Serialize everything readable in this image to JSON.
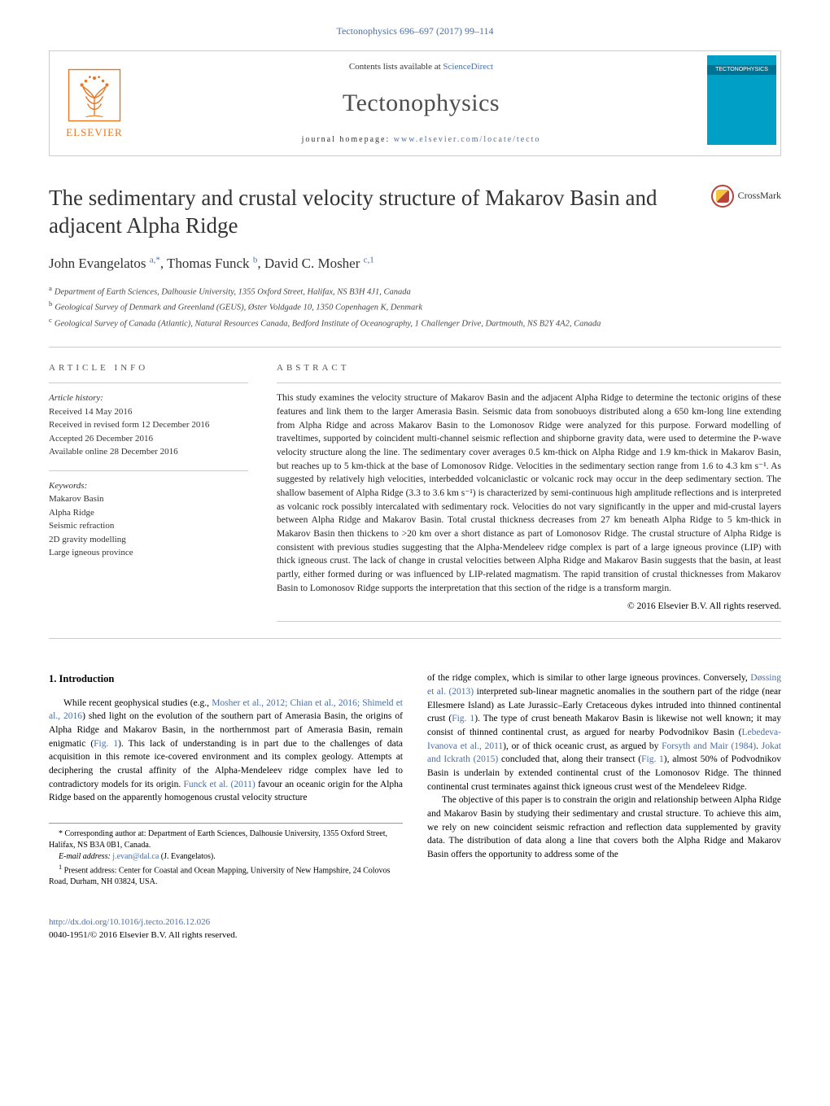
{
  "header": {
    "citation": "Tectonophysics 696–697 (2017) 99–114",
    "contents_prefix": "Contents lists available at ",
    "contents_link": "ScienceDirect",
    "journal_title": "Tectonophysics",
    "homepage_prefix": "journal homepage: ",
    "homepage_link": "www.elsevier.com/locate/tecto",
    "publisher_name": "ELSEVIER",
    "cover_title": "TECTONOPHYSICS"
  },
  "crossmark_label": "CrossMark",
  "article": {
    "title": "The sedimentary and crustal velocity structure of Makarov Basin and adjacent Alpha Ridge",
    "authors_html": "John Evangelatos <sup><a>a</a>,*</sup>, Thomas Funck <sup><a>b</a></sup>, David C. Mosher <sup><a>c</a>,<a>1</a></sup>",
    "affiliations": {
      "a": "Department of Earth Sciences, Dalhousie University, 1355 Oxford Street, Halifax, NS B3H 4J1, Canada",
      "b": "Geological Survey of Denmark and Greenland (GEUS), Øster Voldgade 10, 1350 Copenhagen K, Denmark",
      "c": "Geological Survey of Canada (Atlantic), Natural Resources Canada, Bedford Institute of Oceanography, 1 Challenger Drive, Dartmouth, NS B2Y 4A2, Canada"
    }
  },
  "info": {
    "heading": "ARTICLE INFO",
    "history_label": "Article history:",
    "history": [
      "Received 14 May 2016",
      "Received in revised form 12 December 2016",
      "Accepted 26 December 2016",
      "Available online 28 December 2016"
    ],
    "keywords_label": "Keywords:",
    "keywords": [
      "Makarov Basin",
      "Alpha Ridge",
      "Seismic refraction",
      "2D gravity modelling",
      "Large igneous province"
    ]
  },
  "abstract": {
    "heading": "ABSTRACT",
    "text": "This study examines the velocity structure of Makarov Basin and the adjacent Alpha Ridge to determine the tectonic origins of these features and link them to the larger Amerasia Basin. Seismic data from sonobuoys distributed along a 650 km-long line extending from Alpha Ridge and across Makarov Basin to the Lomonosov Ridge were analyzed for this purpose. Forward modelling of traveltimes, supported by coincident multi-channel seismic reflection and shipborne gravity data, were used to determine the P-wave velocity structure along the line. The sedimentary cover averages 0.5 km-thick on Alpha Ridge and 1.9 km-thick in Makarov Basin, but reaches up to 5 km-thick at the base of Lomonosov Ridge. Velocities in the sedimentary section range from 1.6 to 4.3 km s⁻¹. As suggested by relatively high velocities, interbedded volcaniclastic or volcanic rock may occur in the deep sedimentary section. The shallow basement of Alpha Ridge (3.3 to 3.6 km s⁻¹) is characterized by semi-continuous high amplitude reflections and is interpreted as volcanic rock possibly intercalated with sedimentary rock. Velocities do not vary significantly in the upper and mid-crustal layers between Alpha Ridge and Makarov Basin. Total crustal thickness decreases from 27 km beneath Alpha Ridge to 5 km-thick in Makarov Basin then thickens to >20 km over a short distance as part of Lomonosov Ridge. The crustal structure of Alpha Ridge is consistent with previous studies suggesting that the Alpha-Mendeleev ridge complex is part of a large igneous province (LIP) with thick igneous crust. The lack of change in crustal velocities between Alpha Ridge and Makarov Basin suggests that the basin, at least partly, either formed during or was influenced by LIP-related magmatism. The rapid transition of crustal thicknesses from Makarov Basin to Lomonosov Ridge supports the interpretation that this section of the ridge is a transform margin.",
    "copyright": "© 2016 Elsevier B.V. All rights reserved."
  },
  "body": {
    "section_heading": "1. Introduction",
    "col1_html": "While recent geophysical studies (e.g., <a>Mosher et al., 2012; Chian et al., 2016; Shimeld et al., 2016</a>) shed light on the evolution of the southern part of Amerasia Basin, the origins of Alpha Ridge and Makarov Basin, in the northernmost part of Amerasia Basin, remain enigmatic (<a>Fig. 1</a>). This lack of understanding is in part due to the challenges of data acquisition in this remote ice-covered environment and its complex geology. Attempts at deciphering the crustal affinity of the Alpha-Mendeleev ridge complex have led to contradictory models for its origin. <a>Funck et al. (2011)</a> favour an oceanic origin for the Alpha Ridge based on the apparently homogenous crustal velocity structure",
    "col2_p1_html": "of the ridge complex, which is similar to other large igneous provinces. Conversely, <a>Døssing et al. (2013)</a> interpreted sub-linear magnetic anomalies in the southern part of the ridge (near Ellesmere Island) as Late Jurassic–Early Cretaceous dykes intruded into thinned continental crust (<a>Fig. 1</a>). The type of crust beneath Makarov Basin is likewise not well known; it may consist of thinned continental crust, as argued for nearby Podvodnikov Basin (<a>Lebedeva-Ivanova et al., 2011</a>), or of thick oceanic crust, as argued by <a>Forsyth and Mair (1984)</a>. <a>Jokat and Ickrath (2015)</a> concluded that, along their transect (<a>Fig. 1</a>), almost 50% of Podvodnikov Basin is underlain by extended continental crust of the Lomonosov Ridge. The thinned continental crust terminates against thick igneous crust west of the Mendeleev Ridge.",
    "col2_p2_html": "The objective of this paper is to constrain the origin and relationship between Alpha Ridge and Makarov Basin by studying their sedimentary and crustal structure. To achieve this aim, we rely on new coincident seismic refraction and reflection data supplemented by gravity data. The distribution of data along a line that covers both the Alpha Ridge and Makarov Basin offers the opportunity to address some of the"
  },
  "footnotes": {
    "corr": "* Corresponding author at: Department of Earth Sciences, Dalhousie University, 1355 Oxford Street, Halifax, NS B3A 0B1, Canada.",
    "email_label": "E-mail address:",
    "email": "j.evan@dal.ca",
    "email_who": "(J. Evangelatos).",
    "present": "Present address: Center for Coastal and Ocean Mapping, University of New Hampshire, 24 Colovos Road, Durham, NH 03824, USA."
  },
  "footer": {
    "doi": "http://dx.doi.org/10.1016/j.tecto.2016.12.026",
    "issn_line": "0040-1951/© 2016 Elsevier B.V. All rights reserved."
  }
}
